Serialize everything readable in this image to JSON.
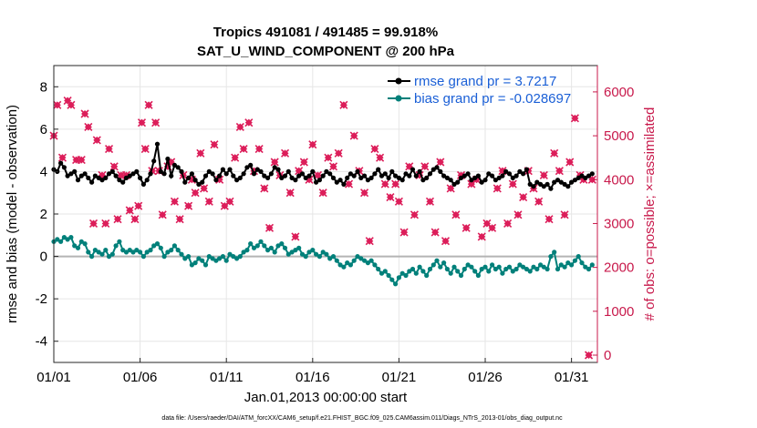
{
  "chart_data": {
    "type": "line",
    "title": "Tropics 491081 / 491485 = 99.918%",
    "subtitle": "SAT_U_WIND_COMPONENT @ 200 hPa",
    "xlabel": "Jan.01,2013 00:00:00 start",
    "ylabel_left": "rmse and bias (model - observation)",
    "ylabel_right": "# of obs: o=possible; ×=assimilated",
    "footer": "data file: /Users/raeder/DAI/ATM_forcXX/CAM6_setup/f.e21.FHIST_BGC.f09_025.CAM6assim.011/Diags_NTrS_2013-01/obs_diag_output.nc",
    "xlim": [
      1,
      32.5
    ],
    "ylim_left": [
      -5,
      9
    ],
    "ylim_right": [
      -166,
      6600
    ],
    "xticks": [
      1,
      6,
      11,
      16,
      21,
      26,
      31
    ],
    "xtick_labels": [
      "01/01",
      "01/06",
      "01/11",
      "01/16",
      "01/21",
      "01/26",
      "01/31"
    ],
    "yticks_left": [
      -4,
      -2,
      0,
      2,
      4,
      6,
      8
    ],
    "yticks_right": [
      0,
      1000,
      2000,
      3000,
      4000,
      5000,
      6000
    ],
    "grid": true,
    "legend_location": "top-right",
    "series": [
      {
        "name": "rmse grand pr = 3.7217",
        "color": "#000000",
        "axis": "left",
        "marker": "circle",
        "values": [
          4.1,
          4.0,
          4.4,
          4.2,
          3.8,
          3.9,
          4.0,
          3.6,
          3.8,
          3.9,
          3.7,
          3.5,
          3.8,
          3.7,
          3.6,
          3.7,
          3.9,
          4.0,
          3.8,
          3.6,
          3.5,
          3.7,
          3.8,
          3.9,
          4.0,
          3.7,
          3.4,
          3.6,
          3.9,
          4.5,
          5.3,
          4.0,
          3.9,
          4.6,
          3.8,
          4.3,
          4.2,
          4.0,
          3.5,
          3.7,
          3.9,
          3.6,
          3.4,
          3.5,
          3.8,
          4.0,
          3.9,
          3.6,
          3.8,
          4.1,
          3.9,
          4.1,
          3.8,
          3.6,
          3.7,
          3.9,
          4.2,
          4.3,
          3.9,
          4.1,
          4.0,
          3.8,
          3.7,
          3.9,
          4.2,
          4.1,
          3.7,
          3.8,
          4.0,
          3.7,
          3.6,
          3.8,
          3.9,
          3.7,
          3.8,
          4.0,
          3.5,
          3.6,
          3.8,
          4.0,
          3.9,
          3.7,
          3.5,
          3.6,
          3.4,
          3.7,
          3.9,
          3.8,
          4.0,
          3.7,
          3.8,
          3.6,
          3.7,
          3.9,
          4.1,
          3.8,
          3.9,
          3.7,
          4.0,
          3.8,
          3.7,
          3.6,
          3.9,
          3.8,
          4.1,
          3.8,
          4.0,
          3.6,
          3.7,
          3.9,
          4.1,
          4.2,
          4.0,
          3.8,
          3.7,
          3.6,
          3.4,
          3.5,
          3.7,
          3.8,
          3.9,
          3.6,
          3.7,
          3.8,
          3.5,
          3.6,
          3.9,
          3.8,
          3.6,
          3.7,
          3.8,
          4.0,
          3.9,
          3.7,
          3.8,
          4.0,
          3.9,
          4.1,
          3.4,
          3.3,
          3.5,
          3.4,
          3.3,
          3.4,
          3.2,
          3.5,
          3.6,
          3.5,
          3.4,
          3.3,
          3.5,
          3.6,
          3.7,
          3.8,
          3.7,
          3.8,
          3.9
        ]
      },
      {
        "name": "bias grand pr = -0.028697",
        "color": "#00807a",
        "axis": "left",
        "marker": "circle",
        "values": [
          0.7,
          0.8,
          0.7,
          0.9,
          0.8,
          0.9,
          0.5,
          0.4,
          0.7,
          0.6,
          0.2,
          0.0,
          0.3,
          0.2,
          0.1,
          0.3,
          0.0,
          0.1,
          0.5,
          0.7,
          0.3,
          0.2,
          0.3,
          0.2,
          0.3,
          0.2,
          0.0,
          0.2,
          0.3,
          0.5,
          0.6,
          0.4,
          0.0,
          0.2,
          0.3,
          0.5,
          0.3,
          0.1,
          -0.1,
          0.0,
          -0.4,
          -0.3,
          -0.1,
          -0.2,
          -0.4,
          0.0,
          -0.1,
          -0.2,
          -0.1,
          0.0,
          -0.2,
          0.1,
          0.0,
          -0.1,
          0.0,
          0.2,
          0.3,
          0.6,
          0.4,
          0.5,
          0.7,
          0.5,
          0.3,
          0.4,
          0.2,
          0.5,
          0.6,
          0.4,
          0.1,
          0.2,
          0.3,
          0.4,
          0.1,
          0.0,
          0.2,
          0.3,
          0.1,
          0.0,
          0.2,
          0.1,
          -0.1,
          0.0,
          -0.2,
          -0.4,
          -0.5,
          -0.3,
          -0.4,
          -0.2,
          0.0,
          -0.1,
          -0.2,
          -0.3,
          -0.2,
          -0.4,
          -0.6,
          -0.8,
          -0.7,
          -0.9,
          -1.1,
          -1.3,
          -1.0,
          -0.8,
          -0.9,
          -0.7,
          -0.6,
          -0.8,
          -0.5,
          -0.7,
          -0.9,
          -0.6,
          -0.4,
          -0.2,
          -0.5,
          -0.3,
          -0.6,
          -0.8,
          -0.5,
          -0.7,
          -0.9,
          -0.6,
          -0.4,
          -0.5,
          -0.7,
          -0.9,
          -0.6,
          -0.5,
          -0.7,
          -0.4,
          -0.6,
          -0.5,
          -0.8,
          -0.6,
          -0.5,
          -0.7,
          -0.6,
          -0.4,
          -0.5,
          -0.6,
          -0.7,
          -0.5,
          -0.6,
          -0.4,
          -0.5,
          -0.6,
          0.0,
          0.2,
          -0.6,
          -0.4,
          -0.5,
          -0.3,
          -0.4,
          -0.2,
          0.0,
          -0.3,
          -0.5,
          -0.6,
          -0.4
        ]
      },
      {
        "name": "# of obs (possible / assimilated)",
        "color": "#dc1e5a",
        "axis": "right",
        "marker": "x-diamond",
        "x": [
          1.0,
          1.2,
          1.5,
          1.8,
          2.0,
          2.3,
          2.6,
          2.8,
          3.0,
          3.3,
          3.5,
          3.8,
          4.0,
          4.2,
          4.5,
          4.7,
          4.9,
          5.2,
          5.4,
          5.7,
          5.9,
          6.1,
          6.3,
          6.5,
          6.7,
          6.9,
          7.1,
          7.3,
          7.6,
          7.8,
          8.0,
          8.3,
          8.5,
          8.8,
          9.0,
          9.2,
          9.5,
          9.7,
          10.0,
          10.3,
          10.6,
          10.9,
          11.2,
          11.5,
          11.8,
          12.0,
          12.3,
          12.6,
          12.9,
          13.2,
          13.5,
          13.8,
          14.1,
          14.4,
          14.7,
          15.0,
          15.2,
          15.5,
          15.8,
          16.0,
          16.3,
          16.6,
          16.9,
          17.2,
          17.5,
          17.8,
          18.1,
          18.4,
          18.7,
          19.0,
          19.3,
          19.6,
          19.9,
          20.2,
          20.5,
          20.8,
          21.0,
          21.3,
          21.6,
          21.9,
          22.2,
          22.5,
          22.8,
          23.1,
          23.4,
          23.7,
          24.0,
          24.3,
          24.6,
          24.9,
          25.2,
          25.5,
          25.8,
          26.1,
          26.4,
          26.7,
          27.0,
          27.3,
          27.6,
          27.9,
          28.2,
          28.5,
          28.8,
          29.1,
          29.4,
          29.7,
          30.0,
          30.3,
          30.6,
          30.9,
          31.2,
          31.5,
          31.7,
          32.0,
          32.2
        ],
        "values": [
          5000,
          5700,
          4500,
          5800,
          5700,
          4450,
          4450,
          5500,
          5200,
          3000,
          4900,
          4100,
          3000,
          4700,
          4300,
          3100,
          4100,
          4100,
          3300,
          3100,
          3400,
          5300,
          4700,
          5700,
          4200,
          5300,
          4200,
          3200,
          4300,
          4400,
          3500,
          3100,
          4100,
          3400,
          4000,
          3700,
          4600,
          3800,
          3500,
          4800,
          4000,
          3400,
          3500,
          4500,
          5200,
          4700,
          5300,
          4200,
          4700,
          3800,
          2900,
          4400,
          4100,
          4600,
          3700,
          2700,
          4200,
          4400,
          4000,
          4800,
          4100,
          3700,
          4500,
          4300,
          4600,
          5700,
          3900,
          5000,
          4200,
          3700,
          2600,
          4700,
          4500,
          3900,
          3600,
          3900,
          3500,
          2800,
          4300,
          3200,
          4100,
          4300,
          3500,
          2800,
          4400,
          2600,
          3800,
          3200,
          4100,
          2900,
          3900,
          4000,
          2700,
          3000,
          2900,
          3800,
          4200,
          3000,
          3900,
          3200,
          3600,
          4200,
          3800,
          3500,
          4100,
          3100,
          4600,
          4200,
          3200,
          4400,
          5400,
          4100,
          4000,
          0,
          4000
        ]
      }
    ]
  }
}
